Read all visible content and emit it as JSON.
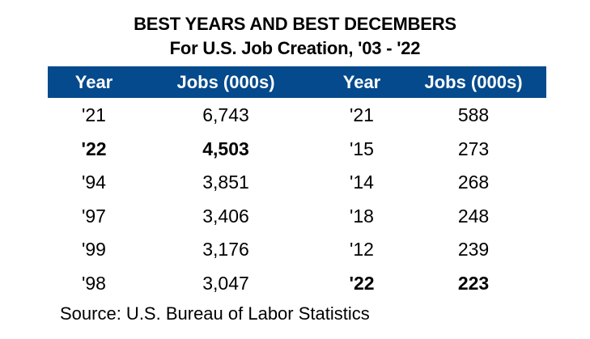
{
  "title": {
    "line1": "BEST YEARS AND BEST DECEMBERS",
    "line2": "For U.S. Job Creation, '03 - '22"
  },
  "colors": {
    "header_bg": "#044A8C",
    "header_text": "#FFFFFF",
    "body_text": "#000000"
  },
  "table": {
    "headers": [
      "Year",
      "Jobs (000s)",
      "Year",
      "Jobs (000s)"
    ],
    "rows": [
      {
        "year_a": "'21",
        "jobs_a": "6,743",
        "year_b": "'21",
        "jobs_b": "588",
        "bold_a": false,
        "bold_b": false
      },
      {
        "year_a": "'22",
        "jobs_a": "4,503",
        "year_b": "'15",
        "jobs_b": "273",
        "bold_a": true,
        "bold_b": false
      },
      {
        "year_a": "'94",
        "jobs_a": "3,851",
        "year_b": "'14",
        "jobs_b": "268",
        "bold_a": false,
        "bold_b": false
      },
      {
        "year_a": "'97",
        "jobs_a": "3,406",
        "year_b": "'18",
        "jobs_b": "248",
        "bold_a": false,
        "bold_b": false
      },
      {
        "year_a": "'99",
        "jobs_a": "3,176",
        "year_b": "'12",
        "jobs_b": "239",
        "bold_a": false,
        "bold_b": false
      },
      {
        "year_a": "'98",
        "jobs_a": "3,047",
        "year_b": "'22",
        "jobs_b": "223",
        "bold_a": false,
        "bold_b": true
      }
    ]
  },
  "source": "Source: U.S. Bureau of Labor Statistics"
}
